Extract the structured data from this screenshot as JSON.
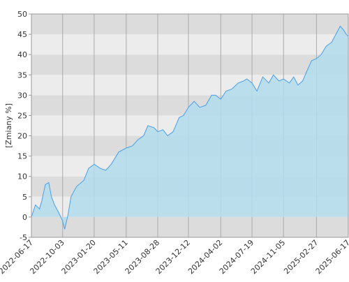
{
  "chart_data": {
    "type": "area",
    "y_label": "[Zmiany %]",
    "x": [
      "2022-06-17",
      "2022-07-01",
      "2022-07-15",
      "2022-07-23",
      "2022-08-04",
      "2022-08-16",
      "2022-08-25",
      "2022-09-05",
      "2022-09-20",
      "2022-10-03",
      "2022-10-10",
      "2022-10-20",
      "2022-11-01",
      "2022-11-20",
      "2022-12-15",
      "2023-01-01",
      "2023-01-20",
      "2023-02-10",
      "2023-03-01",
      "2023-03-20",
      "2023-04-15",
      "2023-05-11",
      "2023-06-01",
      "2023-06-20",
      "2023-07-10",
      "2023-07-25",
      "2023-08-15",
      "2023-08-28",
      "2023-09-15",
      "2023-10-01",
      "2023-10-20",
      "2023-11-10",
      "2023-11-25",
      "2023-12-12",
      "2024-01-01",
      "2024-01-20",
      "2024-02-10",
      "2024-03-01",
      "2024-03-15",
      "2024-04-02",
      "2024-04-20",
      "2024-05-10",
      "2024-06-01",
      "2024-06-20",
      "2024-07-01",
      "2024-07-19",
      "2024-08-05",
      "2024-08-25",
      "2024-09-15",
      "2024-10-01",
      "2024-10-20",
      "2024-11-05",
      "2024-11-25",
      "2024-12-10",
      "2024-12-25",
      "2025-01-10",
      "2025-01-25",
      "2025-02-10",
      "2025-02-27",
      "2025-03-15",
      "2025-04-01",
      "2025-04-10",
      "2025-04-20",
      "2025-05-05",
      "2025-05-20",
      "2025-06-01",
      "2025-06-10",
      "2025-06-17"
    ],
    "values": [
      0,
      3,
      2,
      4,
      8,
      8.5,
      5,
      3,
      1,
      -1,
      -3,
      0,
      5,
      7.5,
      9,
      12,
      13,
      12,
      11.5,
      13,
      16,
      17,
      17.5,
      19,
      20,
      22.5,
      22,
      21,
      21.5,
      20,
      21,
      24.5,
      25,
      27,
      28.5,
      27,
      27.5,
      30,
      30,
      29,
      31,
      31.5,
      33,
      33.5,
      34,
      33,
      31,
      34.5,
      33,
      35,
      33.5,
      34,
      33,
      34.5,
      32.5,
      33.5,
      36,
      38.5,
      39,
      40,
      42,
      42.5,
      43,
      45,
      47,
      46,
      45,
      44.5
    ],
    "color": "#4a9fe8",
    "fill": "#b3dced",
    "xlim": [
      "2022-06-17",
      "2025-06-17"
    ],
    "xticks": [
      "2022-06-17",
      "2022-10-03",
      "2023-01-20",
      "2023-05-11",
      "2023-08-28",
      "2023-12-12",
      "2024-04-02",
      "2024-07-19",
      "2024-11-05",
      "2025-02-27",
      "2025-06-17"
    ],
    "ylim": [
      -5,
      50
    ],
    "yticks": [
      -5,
      0,
      5,
      10,
      15,
      20,
      25,
      30,
      35,
      40,
      45,
      50
    ],
    "grid": true,
    "bands": [
      "#ececec",
      "#dcdcdc"
    ]
  }
}
